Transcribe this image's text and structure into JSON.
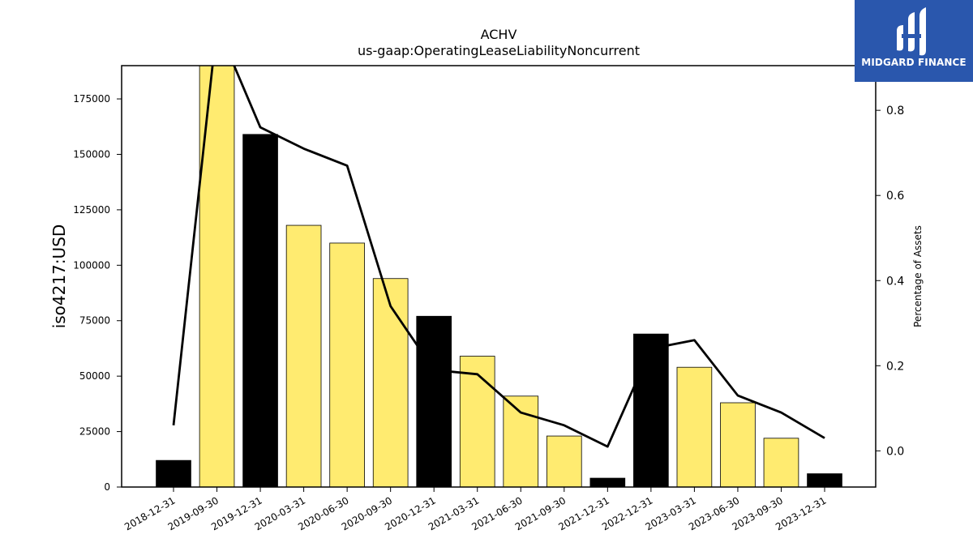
{
  "logo": {
    "text": "MIDGARD FINANCE",
    "background": "#2a57ad"
  },
  "chart_data": {
    "type": "bar",
    "title": "ACHV",
    "subtitle": "us-gaap:OperatingLeaseLiabilityNoncurrent",
    "ylabel": "iso4217:USD",
    "y2label": "Percentage of Assets",
    "ylim": [
      0,
      190000
    ],
    "y2lim": [
      -0.085,
      0.905
    ],
    "yticks": [
      0,
      25000,
      50000,
      75000,
      100000,
      125000,
      150000,
      175000
    ],
    "y2ticks": [
      "0.0",
      "0.2",
      "0.4",
      "0.6",
      "0.8"
    ],
    "grid": false,
    "categories": [
      "2018-12-31",
      "2019-09-30",
      "2019-12-31",
      "2020-03-31",
      "2020-06-30",
      "2020-09-30",
      "2020-12-31",
      "2021-03-31",
      "2021-06-30",
      "2021-09-30",
      "2021-12-31",
      "2022-12-31",
      "2023-03-31",
      "2023-06-30",
      "2023-09-30",
      "2023-12-31"
    ],
    "values": [
      12000,
      190000,
      159000,
      118000,
      110000,
      94000,
      77000,
      59000,
      41000,
      23000,
      4000,
      69000,
      54000,
      38000,
      22000,
      6000
    ],
    "bar_colors": [
      "#000000",
      "#ffeb70",
      "#000000",
      "#ffeb70",
      "#ffeb70",
      "#ffeb70",
      "#000000",
      "#ffeb70",
      "#ffeb70",
      "#ffeb70",
      "#000000",
      "#000000",
      "#ffeb70",
      "#ffeb70",
      "#ffeb70",
      "#000000"
    ],
    "line_series": {
      "name": "",
      "values": [
        0.06,
        1.0,
        0.76,
        0.71,
        0.67,
        0.34,
        0.19,
        0.18,
        0.09,
        0.06,
        0.01,
        0.24,
        0.26,
        0.13,
        0.09,
        0.03
      ],
      "color": "#000000"
    }
  }
}
